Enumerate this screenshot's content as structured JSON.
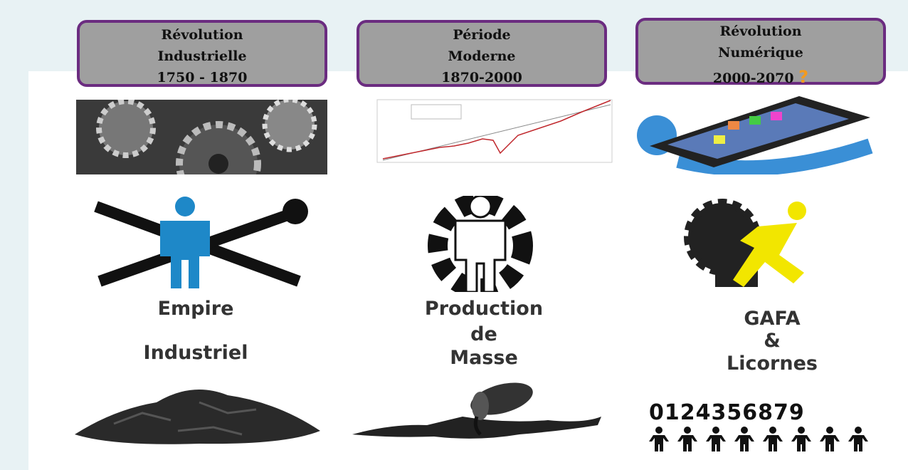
{
  "columns": [
    {
      "header": [
        "Révolution",
        "Industrielle",
        "1750 - 1870"
      ],
      "caption": [
        "Empire",
        "Industriel"
      ]
    },
    {
      "header": [
        "Période",
        "Moderne",
        "1870-2000"
      ],
      "caption": [
        "Production",
        "de",
        "Masse"
      ]
    },
    {
      "header": [
        "Révolution",
        "Numérique",
        "2000-2070"
      ],
      "header_mark": "?",
      "caption": [
        "GAFA",
        "&",
        "Licornes"
      ],
      "digits": "0124356879"
    }
  ]
}
